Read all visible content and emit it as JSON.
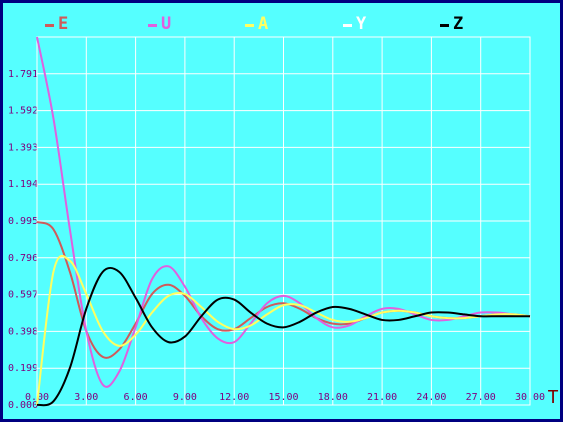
{
  "chart_data": {
    "type": "line",
    "x_label": "T",
    "x": [
      0,
      1,
      2,
      3,
      4,
      5,
      6,
      7,
      8,
      9,
      10,
      11,
      12,
      13,
      14,
      15,
      16,
      17,
      18,
      19,
      20,
      21,
      22,
      23,
      24,
      25,
      26,
      27,
      28,
      29,
      30
    ],
    "series": [
      {
        "name": "E",
        "color": "#d05a5a",
        "values": [
          0.99,
          0.95,
          0.72,
          0.4,
          0.26,
          0.3,
          0.44,
          0.6,
          0.65,
          0.59,
          0.48,
          0.41,
          0.41,
          0.47,
          0.53,
          0.55,
          0.52,
          0.47,
          0.44,
          0.44,
          0.47,
          0.5,
          0.51,
          0.5,
          0.48,
          0.47,
          0.47,
          0.48,
          0.49,
          0.49,
          0.48
        ]
      },
      {
        "name": "U",
        "color": "#e060e0",
        "values": [
          1.99,
          1.55,
          0.95,
          0.4,
          0.11,
          0.18,
          0.42,
          0.68,
          0.75,
          0.64,
          0.47,
          0.36,
          0.34,
          0.44,
          0.55,
          0.59,
          0.55,
          0.47,
          0.42,
          0.43,
          0.48,
          0.52,
          0.52,
          0.49,
          0.46,
          0.46,
          0.48,
          0.5,
          0.5,
          0.49,
          0.48
        ]
      },
      {
        "name": "A",
        "color": "#ffff60",
        "values": [
          0.0,
          0.72,
          0.78,
          0.6,
          0.4,
          0.32,
          0.38,
          0.5,
          0.59,
          0.6,
          0.53,
          0.45,
          0.41,
          0.43,
          0.49,
          0.54,
          0.54,
          0.5,
          0.46,
          0.45,
          0.47,
          0.5,
          0.51,
          0.5,
          0.48,
          0.47,
          0.47,
          0.48,
          0.49,
          0.49,
          0.48
        ]
      },
      {
        "name": "Y",
        "color": "#ffffff",
        "values": [
          null,
          null,
          null,
          null,
          null,
          null,
          null,
          null,
          null,
          null,
          null,
          null,
          null,
          null,
          null,
          null,
          null,
          null,
          null,
          null,
          null,
          null,
          null,
          null,
          null,
          null,
          null,
          null,
          null,
          null,
          null
        ]
      },
      {
        "name": "Z",
        "color": "#000000",
        "values": [
          0.0,
          0.02,
          0.2,
          0.52,
          0.72,
          0.72,
          0.58,
          0.42,
          0.34,
          0.37,
          0.48,
          0.57,
          0.57,
          0.5,
          0.44,
          0.42,
          0.45,
          0.5,
          0.53,
          0.52,
          0.49,
          0.46,
          0.46,
          0.48,
          0.5,
          0.5,
          0.49,
          0.48,
          0.48,
          0.48,
          0.48
        ]
      }
    ],
    "xlim": [
      0,
      30
    ],
    "xticks": [
      {
        "value": 0,
        "label": "0.00"
      },
      {
        "value": 3,
        "label": "3.00"
      },
      {
        "value": 6,
        "label": "6.00"
      },
      {
        "value": 9,
        "label": "9.00"
      },
      {
        "value": 12,
        "label": "12.00"
      },
      {
        "value": 15,
        "label": "15.00"
      },
      {
        "value": 18,
        "label": "18.00"
      },
      {
        "value": 21,
        "label": "21.00"
      },
      {
        "value": 24,
        "label": "24.00"
      },
      {
        "value": 27,
        "label": "27.00"
      },
      {
        "value": 30,
        "label": "30.00"
      }
    ],
    "ylim": [
      0,
      1.99
    ],
    "yticks": [
      {
        "value": 0,
        "label": "0.000"
      },
      {
        "value": 0.199,
        "label": "0.199"
      },
      {
        "value": 0.398,
        "label": "0.398"
      },
      {
        "value": 0.597,
        "label": "0.597"
      },
      {
        "value": 0.796,
        "label": "0.796"
      },
      {
        "value": 0.995,
        "label": "0.995"
      },
      {
        "value": 1.194,
        "label": "1.194"
      },
      {
        "value": 1.393,
        "label": "1.393"
      },
      {
        "value": 1.592,
        "label": "1.592"
      },
      {
        "value": 1.791,
        "label": "1.791"
      }
    ],
    "grid": true
  }
}
